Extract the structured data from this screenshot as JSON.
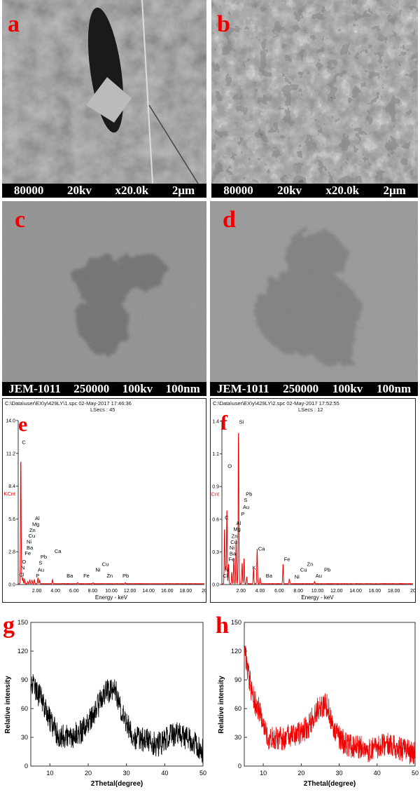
{
  "panels": {
    "a": {
      "letter": "a",
      "info": [
        "80000",
        "20kv",
        "x20.0k",
        "2μm"
      ]
    },
    "b": {
      "letter": "b",
      "info": [
        "80000",
        "20kv",
        "x20.0k",
        "2μm"
      ]
    },
    "c": {
      "letter": "c",
      "info": [
        "JEM-1011",
        "250000",
        "100kv",
        "100nm"
      ]
    },
    "d": {
      "letter": "d",
      "info": [
        "JEM-1011",
        "250000",
        "100kv",
        "100nm"
      ]
    }
  },
  "colors": {
    "letter": "#ee0000",
    "spectrum": "#ee0000",
    "xrd_g": "#000000",
    "xrd_h": "#ee0000"
  },
  "chart_data": [
    {
      "id": "e",
      "type": "line",
      "letter": "e",
      "file": "C:\\Data\\user\\EX\\y\\429LY\\1.spc  02-May-2017 17:46:36",
      "lsecs": "LSecs : 45",
      "xlabel": "Energy - keV",
      "ylabel": "KCnt",
      "xlim": [
        0,
        20
      ],
      "ylim": [
        0,
        14
      ],
      "yticks": [
        "0.0",
        "2.8",
        "5.6",
        "8.4",
        "11.2",
        "14.0"
      ],
      "xticks": [
        "2.00",
        "4.00",
        "6.00",
        "8.00",
        "10.00",
        "12.00",
        "14.00",
        "16.00",
        "18.00",
        "20"
      ],
      "peaks": [
        [
          0.28,
          10.8
        ],
        [
          0.4,
          0.6
        ],
        [
          0.52,
          0.5
        ],
        [
          0.7,
          0.4
        ],
        [
          1.04,
          0.2
        ],
        [
          1.25,
          0.3
        ],
        [
          1.49,
          0.3
        ],
        [
          1.74,
          0.35
        ],
        [
          2.12,
          0.5
        ],
        [
          2.3,
          0.3
        ],
        [
          3.69,
          0.35
        ],
        [
          6.4,
          0.1
        ],
        [
          8.04,
          0.08
        ],
        [
          11.5,
          0.08
        ]
      ],
      "labels": [
        [
          "C",
          0.4,
          12.0
        ],
        [
          "Al",
          1.8,
          5.5
        ],
        [
          "Mg",
          1.5,
          5.0
        ],
        [
          "Zn",
          1.2,
          4.5
        ],
        [
          "Cu",
          1.1,
          4.0
        ],
        [
          "Ni",
          0.9,
          3.5
        ],
        [
          "Ba",
          0.9,
          3.0
        ],
        [
          "Fe",
          0.7,
          2.5
        ],
        [
          "Pb",
          2.4,
          2.2
        ],
        [
          "S",
          2.2,
          1.7
        ],
        [
          "Au",
          2.1,
          1.1
        ],
        [
          "O",
          0.4,
          1.8
        ],
        [
          "N",
          0.3,
          1.3
        ],
        [
          "Cl",
          0.1,
          0.7
        ],
        [
          "P",
          1.9,
          0.6
        ],
        [
          "Ca",
          3.9,
          2.7
        ],
        [
          "Ba",
          5.2,
          0.6
        ],
        [
          "Fe",
          7.0,
          0.6
        ],
        [
          "Ni",
          8.3,
          1.1
        ],
        [
          "Cu",
          9.0,
          1.6
        ],
        [
          "Zn",
          9.5,
          0.6
        ],
        [
          "Pb",
          11.2,
          0.6
        ]
      ]
    },
    {
      "id": "f",
      "type": "line",
      "letter": "f",
      "file": "C:\\Data\\user\\EX\\y\\429LY\\2.spc  02-May-2017 17:52:55",
      "lsecs": "LSecs : 12",
      "xlabel": "Energy - keV",
      "ylabel": "KCnt",
      "xlim": [
        0,
        20
      ],
      "ylim": [
        0,
        1.4
      ],
      "yticks": [
        "0.0",
        "0.3",
        "0.6",
        "0.9",
        "1.1",
        "1.4"
      ],
      "xticks": [
        "2.00",
        "4.00",
        "6.00",
        "8.00",
        "10.00",
        "12.00",
        "14.00",
        "16.00",
        "18.00",
        "20"
      ],
      "peaks": [
        [
          0.28,
          0.48
        ],
        [
          0.4,
          0.15
        ],
        [
          0.52,
          0.65
        ],
        [
          0.7,
          0.17
        ],
        [
          1.04,
          0.1
        ],
        [
          1.25,
          0.22
        ],
        [
          1.49,
          0.38
        ],
        [
          1.74,
          1.34
        ],
        [
          2.12,
          0.18
        ],
        [
          2.32,
          0.22
        ],
        [
          2.6,
          0.06
        ],
        [
          3.31,
          0.13
        ],
        [
          3.69,
          0.3
        ],
        [
          4.0,
          0.05
        ],
        [
          6.4,
          0.17
        ],
        [
          7.06,
          0.04
        ],
        [
          9.7,
          0.02
        ]
      ],
      "labels": [
        [
          "Si",
          1.8,
          1.38
        ],
        [
          "O",
          0.6,
          1.0
        ],
        [
          "Pb",
          2.5,
          0.76
        ],
        [
          "S",
          2.3,
          0.71
        ],
        [
          "Au",
          2.2,
          0.65
        ],
        [
          "P",
          2.0,
          0.59
        ],
        [
          "C",
          0.3,
          0.56
        ],
        [
          "Al",
          1.5,
          0.51
        ],
        [
          "Mg",
          1.2,
          0.46
        ],
        [
          "Zn",
          1.0,
          0.4
        ],
        [
          "Cu",
          0.9,
          0.35
        ],
        [
          "Ni",
          0.8,
          0.3
        ],
        [
          "Ba",
          0.8,
          0.25
        ],
        [
          "Fe",
          0.7,
          0.2
        ],
        [
          "N",
          0.3,
          0.11
        ],
        [
          "Cl",
          0.1,
          0.06
        ],
        [
          "Ca",
          3.8,
          0.29
        ],
        [
          "K",
          3.2,
          0.13
        ],
        [
          "Ba",
          4.6,
          0.06
        ],
        [
          "Fe",
          6.5,
          0.2
        ],
        [
          "Cu",
          8.2,
          0.11
        ],
        [
          "Zn",
          8.9,
          0.16
        ],
        [
          "Ni",
          7.6,
          0.05
        ],
        [
          "Au",
          9.8,
          0.06
        ],
        [
          "Pb",
          10.7,
          0.11
        ]
      ]
    },
    {
      "id": "g",
      "type": "line",
      "letter": "g",
      "xlabel": "2Thetal(degree)",
      "ylabel": "Relative intensity",
      "xlim": [
        5,
        50
      ],
      "ylim": [
        0,
        150
      ],
      "xticks": [
        "10",
        "20",
        "30",
        "40",
        "50"
      ],
      "yticks": [
        "0",
        "30",
        "60",
        "90",
        "120",
        "150"
      ],
      "x": [
        5,
        7,
        9,
        10,
        12,
        15,
        18,
        20,
        22,
        24,
        26,
        27,
        28,
        30,
        32,
        35,
        38,
        40,
        43,
        45,
        48,
        50
      ],
      "y": [
        90,
        75,
        60,
        48,
        33,
        30,
        35,
        45,
        58,
        75,
        80,
        82,
        65,
        45,
        30,
        27,
        22,
        27,
        35,
        30,
        25,
        15
      ]
    },
    {
      "id": "h",
      "type": "line",
      "letter": "h",
      "xlabel": "2Thetal(degree)",
      "ylabel": "Relative intensity",
      "xlim": [
        5,
        50
      ],
      "ylim": [
        0,
        150
      ],
      "xticks": [
        "10",
        "20",
        "30",
        "40",
        "50"
      ],
      "yticks": [
        "0",
        "30",
        "60",
        "90",
        "120",
        "150"
      ],
      "x": [
        5,
        6,
        7,
        8,
        9,
        10,
        11,
        13,
        15,
        17,
        20,
        22,
        24,
        26,
        27,
        28,
        30,
        32,
        35,
        38,
        40,
        43,
        45,
        48,
        50
      ],
      "y": [
        120,
        100,
        75,
        65,
        58,
        40,
        30,
        30,
        27,
        32,
        35,
        42,
        58,
        65,
        62,
        45,
        30,
        22,
        20,
        16,
        18,
        25,
        20,
        15,
        12
      ]
    }
  ]
}
